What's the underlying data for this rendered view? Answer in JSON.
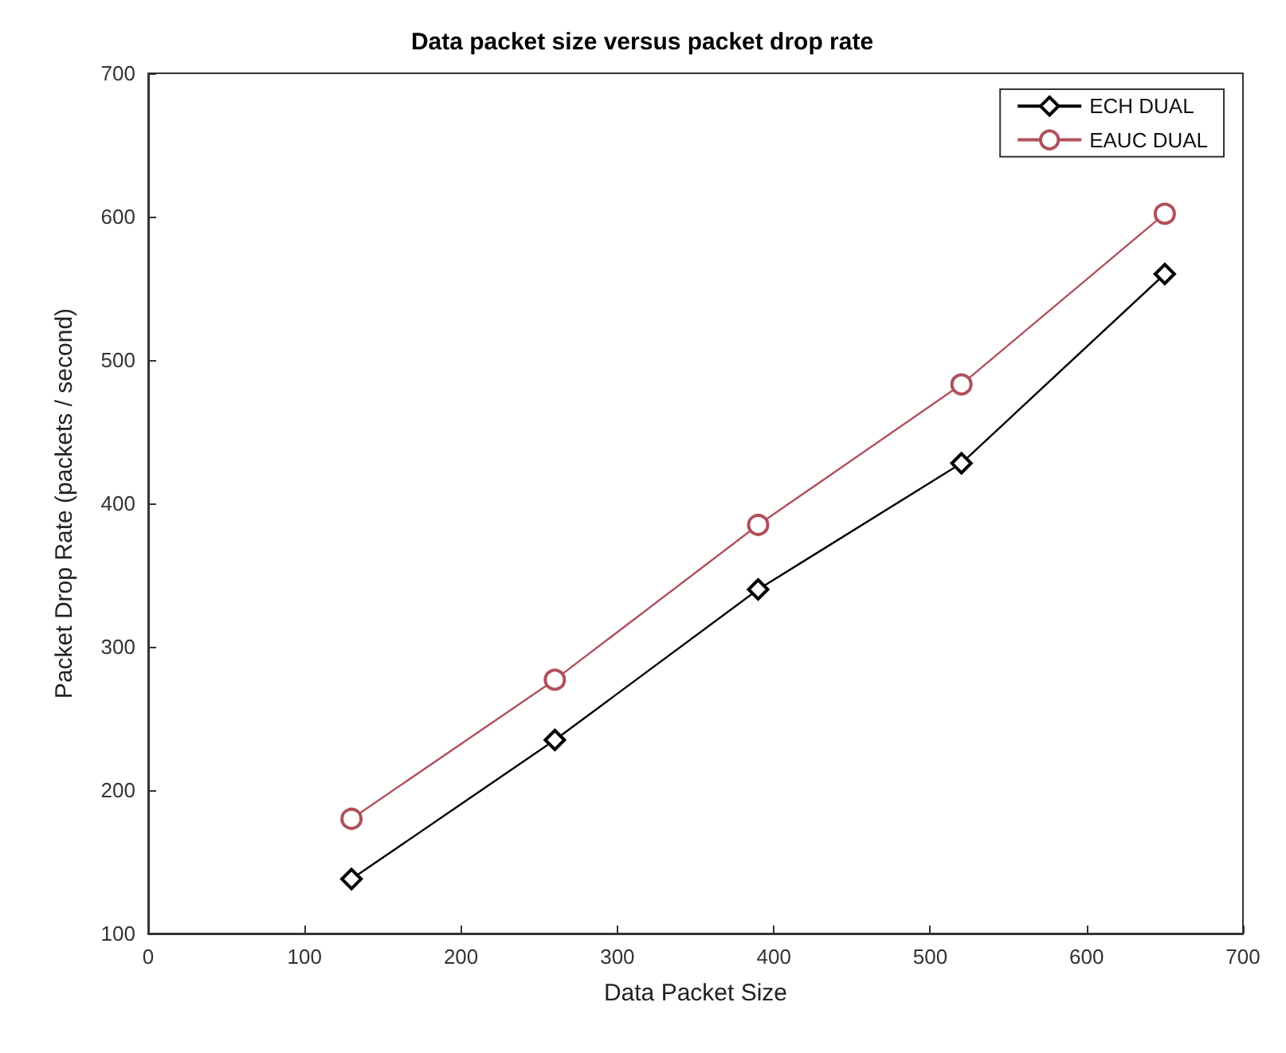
{
  "chart_data": {
    "type": "line",
    "title": "Data packet size versus packet drop rate",
    "xlabel": "Data Packet Size",
    "ylabel": "Packet Drop Rate (packets / second)",
    "x": [
      130,
      260,
      390,
      520,
      650
    ],
    "series": [
      {
        "name": "ECH DUAL",
        "color": "#000000",
        "marker": "diamond",
        "values": [
          138,
          235,
          340,
          428,
          560
        ]
      },
      {
        "name": "EAUC DUAL",
        "color": "#b0505c",
        "marker": "circle",
        "values": [
          180,
          277,
          385,
          483,
          602
        ]
      }
    ],
    "xlim": [
      0,
      700
    ],
    "xticks": [
      0,
      100,
      200,
      300,
      400,
      500,
      600,
      700
    ],
    "ylim": [
      100,
      700
    ],
    "yticks": [
      100,
      200,
      300,
      400,
      500,
      600,
      700
    ],
    "grid": false,
    "legend": "top right",
    "line_style": "solid"
  }
}
